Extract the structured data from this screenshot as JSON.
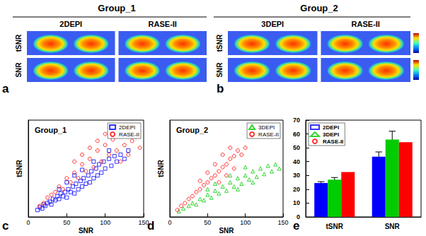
{
  "figure": {
    "panels": [
      {
        "label": "a",
        "title": "Group_1",
        "methods": [
          "2DEPI",
          "RASE-II"
        ],
        "rows": [
          "tSNR",
          "SNR"
        ]
      },
      {
        "label": "b",
        "title": "Group_2",
        "methods": [
          "3DEPI",
          "RASE-II"
        ],
        "rows": [
          "tSNR",
          "SNR"
        ]
      }
    ]
  },
  "chart_data": [
    {
      "type": "scatter",
      "panel": "c",
      "title": "Group_1",
      "x_label": "SNR",
      "y_label": "tSNR",
      "xlim": [
        0,
        150
      ],
      "xticks": [
        0,
        50,
        100,
        150
      ],
      "ylim": [
        0,
        70
      ],
      "tick_labels": "x",
      "grid": false,
      "legend": "upper right",
      "series": [
        {
          "name": "2DEPI",
          "color": "#0000ff",
          "marker": "square",
          "values": [
            [
              12,
              5
            ],
            [
              15,
              7
            ],
            [
              18,
              6
            ],
            [
              20,
              9
            ],
            [
              22,
              8
            ],
            [
              25,
              10
            ],
            [
              28,
              11
            ],
            [
              30,
              9
            ],
            [
              32,
              13
            ],
            [
              35,
              12
            ],
            [
              38,
              15
            ],
            [
              40,
              13
            ],
            [
              42,
              17
            ],
            [
              45,
              15
            ],
            [
              48,
              18
            ],
            [
              50,
              14
            ],
            [
              52,
              20
            ],
            [
              55,
              18
            ],
            [
              58,
              22
            ],
            [
              60,
              17
            ],
            [
              62,
              24
            ],
            [
              65,
              20
            ],
            [
              68,
              26
            ],
            [
              70,
              22
            ],
            [
              72,
              28
            ],
            [
              75,
              24
            ],
            [
              78,
              30
            ],
            [
              80,
              25
            ],
            [
              82,
              33
            ],
            [
              85,
              28
            ],
            [
              88,
              35
            ],
            [
              90,
              30
            ],
            [
              92,
              38
            ],
            [
              95,
              32
            ],
            [
              98,
              40
            ],
            [
              100,
              35
            ],
            [
              105,
              42
            ],
            [
              108,
              37
            ],
            [
              112,
              44
            ],
            [
              115,
              40
            ],
            [
              120,
              45
            ],
            [
              125,
              42
            ],
            [
              130,
              48
            ],
            [
              70,
              34
            ],
            [
              60,
              30
            ],
            [
              50,
              25
            ],
            [
              85,
              40
            ],
            [
              40,
              20
            ],
            [
              105,
              48
            ]
          ]
        },
        {
          "name": "RASE-II",
          "color": "#ff0000",
          "marker": "circle",
          "values": [
            [
              15,
              8
            ],
            [
              20,
              10
            ],
            [
              25,
              14
            ],
            [
              30,
              16
            ],
            [
              35,
              18
            ],
            [
              40,
              22
            ],
            [
              45,
              20
            ],
            [
              50,
              28
            ],
            [
              55,
              25
            ],
            [
              60,
              32
            ],
            [
              65,
              28
            ],
            [
              70,
              38
            ],
            [
              75,
              33
            ],
            [
              80,
              42
            ],
            [
              85,
              36
            ],
            [
              90,
              48
            ],
            [
              95,
              40
            ],
            [
              100,
              52
            ],
            [
              105,
              45
            ],
            [
              110,
              56
            ],
            [
              115,
              48
            ],
            [
              120,
              60
            ],
            [
              125,
              52
            ],
            [
              130,
              62
            ],
            [
              135,
              55
            ],
            [
              140,
              58
            ],
            [
              145,
              50
            ],
            [
              110,
              65
            ],
            [
              100,
              60
            ],
            [
              90,
              55
            ],
            [
              120,
              40
            ],
            [
              130,
              45
            ],
            [
              80,
              50
            ],
            [
              70,
              45
            ],
            [
              60,
              40
            ]
          ]
        }
      ]
    },
    {
      "type": "scatter",
      "panel": "d",
      "title": "Group_2",
      "x_label": "SNR",
      "y_label": "tSNR",
      "xlim": [
        0,
        150
      ],
      "xticks": [
        0,
        50,
        100,
        150
      ],
      "ylim": [
        0,
        70
      ],
      "tick_labels": "x",
      "grid": false,
      "legend": "upper right",
      "series": [
        {
          "name": "3DEPI",
          "color": "#00cc00",
          "marker": "triangle",
          "values": [
            [
              12,
              4
            ],
            [
              18,
              6
            ],
            [
              25,
              8
            ],
            [
              30,
              10
            ],
            [
              35,
              9
            ],
            [
              40,
              13
            ],
            [
              45,
              12
            ],
            [
              50,
              16
            ],
            [
              55,
              14
            ],
            [
              60,
              19
            ],
            [
              65,
              17
            ],
            [
              70,
              22
            ],
            [
              75,
              19
            ],
            [
              80,
              25
            ],
            [
              85,
              22
            ],
            [
              90,
              28
            ],
            [
              95,
              24
            ],
            [
              100,
              30
            ],
            [
              105,
              27
            ],
            [
              110,
              33
            ],
            [
              115,
              29
            ],
            [
              120,
              35
            ],
            [
              125,
              31
            ],
            [
              130,
              37
            ],
            [
              135,
              33
            ],
            [
              140,
              38
            ],
            [
              145,
              35
            ],
            [
              90,
              20
            ],
            [
              110,
              25
            ],
            [
              100,
              36
            ],
            [
              60,
              24
            ],
            [
              50,
              20
            ],
            [
              80,
              30
            ]
          ]
        },
        {
          "name": "RASE-II",
          "color": "#ff0000",
          "marker": "circle",
          "values": [
            [
              10,
              5
            ],
            [
              15,
              8
            ],
            [
              20,
              10
            ],
            [
              25,
              13
            ],
            [
              30,
              15
            ],
            [
              35,
              18
            ],
            [
              40,
              20
            ],
            [
              45,
              23
            ],
            [
              50,
              25
            ],
            [
              55,
              28
            ],
            [
              60,
              30
            ],
            [
              65,
              33
            ],
            [
              70,
              36
            ],
            [
              75,
              38
            ],
            [
              80,
              42
            ],
            [
              85,
              44
            ],
            [
              90,
              48
            ],
            [
              95,
              45
            ],
            [
              100,
              50
            ],
            [
              60,
              38
            ],
            [
              70,
              45
            ],
            [
              80,
              50
            ],
            [
              50,
              32
            ],
            [
              40,
              26
            ],
            [
              85,
              35
            ],
            [
              75,
              30
            ],
            [
              65,
              25
            ]
          ]
        }
      ]
    },
    {
      "type": "bar",
      "panel": "e",
      "categories": [
        "tSNR",
        "SNR"
      ],
      "ylim": [
        0,
        70
      ],
      "yticks": [
        0,
        10,
        20,
        30,
        40,
        50,
        60,
        70
      ],
      "grid": false,
      "legend": "upper left",
      "series": [
        {
          "name": "2DEPI",
          "color": "#0000ff",
          "values": [
            24.5,
            43.5
          ],
          "errors": [
            1,
            3.5
          ]
        },
        {
          "name": "3DEPI",
          "color": "#00cc00",
          "values": [
            27,
            56
          ],
          "errors": [
            1.5,
            6
          ]
        },
        {
          "name": "RASE-II",
          "color": "#ff0000",
          "values": [
            32.5,
            54
          ],
          "errors": [
            0,
            0
          ]
        }
      ]
    }
  ]
}
